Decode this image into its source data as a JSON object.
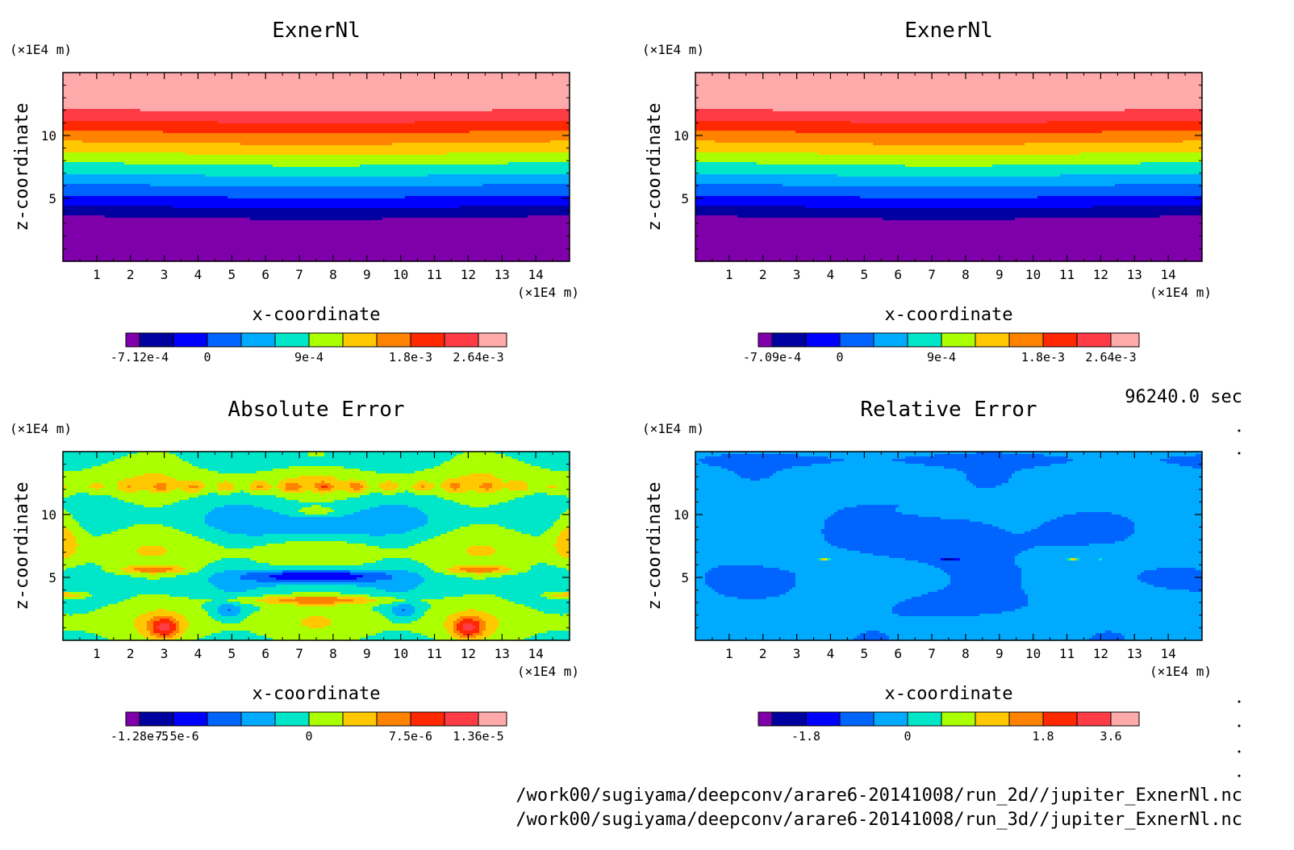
{
  "time_label": "96240.0 sec",
  "files": [
    "/work00/sugiyama/deepconv/arare6-20141008/run_2d//jupiter_ExnerNl.nc",
    "/work00/sugiyama/deepconv/arare6-20141008/run_3d//jupiter_ExnerNl.nc"
  ],
  "chart_data": [
    {
      "type": "heatmap",
      "title": "ExnerNl",
      "xlabel": "x-coordinate",
      "ylabel": "z-coordinate",
      "x_unit": "(×1E4 m)",
      "y_unit": "(×1E4 m)",
      "xlim": [
        0,
        15
      ],
      "ylim": [
        0,
        15
      ],
      "x_ticks": [
        "1",
        "2",
        "3",
        "4",
        "5",
        "6",
        "7",
        "8",
        "9",
        "10",
        "11",
        "12",
        "13",
        "14"
      ],
      "y_ticks": [
        "5",
        "10"
      ],
      "pattern": "horizontal-layers",
      "colorbar_labels": [
        "-7.12e-4",
        "0",
        "9e-4",
        "1.8e-3",
        "2.64e-3"
      ],
      "z_range": [
        -0.000712,
        0.00264
      ]
    },
    {
      "type": "heatmap",
      "title": "ExnerNl",
      "xlabel": "x-coordinate",
      "ylabel": "z-coordinate",
      "x_unit": "(×1E4 m)",
      "y_unit": "(×1E4 m)",
      "xlim": [
        0,
        15
      ],
      "ylim": [
        0,
        15
      ],
      "x_ticks": [
        "1",
        "2",
        "3",
        "4",
        "5",
        "6",
        "7",
        "8",
        "9",
        "10",
        "11",
        "12",
        "13",
        "14"
      ],
      "y_ticks": [
        "5",
        "10"
      ],
      "pattern": "horizontal-layers",
      "colorbar_labels": [
        "-7.09e-4",
        "0",
        "9e-4",
        "1.8e-3",
        "2.64e-3"
      ],
      "z_range": [
        -0.000709,
        0.00264
      ]
    },
    {
      "type": "heatmap",
      "title": "Absolute Error",
      "xlabel": "x-coordinate",
      "ylabel": "z-coordinate",
      "x_unit": "(×1E4 m)",
      "y_unit": "(×1E4 m)",
      "xlim": [
        0,
        15
      ],
      "ylim": [
        0,
        15
      ],
      "x_ticks": [
        "1",
        "2",
        "3",
        "4",
        "5",
        "6",
        "7",
        "8",
        "9",
        "10",
        "11",
        "12",
        "13",
        "14"
      ],
      "y_ticks": [
        "5",
        "10"
      ],
      "pattern": "symmetric-waves",
      "colorbar_labels": [
        "-1.28e-5",
        "-7.5e-6",
        "0",
        "7.5e-6",
        "1.36e-5"
      ],
      "z_range": [
        -1.28e-05,
        1.36e-05
      ]
    },
    {
      "type": "heatmap",
      "title": "Relative Error",
      "xlabel": "x-coordinate",
      "ylabel": "z-coordinate",
      "x_unit": "(×1E4 m)",
      "y_unit": "(×1E4 m)",
      "xlim": [
        0,
        15
      ],
      "ylim": [
        0,
        15
      ],
      "x_ticks": [
        "1",
        "2",
        "3",
        "4",
        "5",
        "6",
        "7",
        "8",
        "9",
        "10",
        "11",
        "12",
        "13",
        "14"
      ],
      "y_ticks": [
        "5",
        "10"
      ],
      "pattern": "mostly-neutral",
      "colorbar_labels": [
        "-1.8",
        "0",
        "1.8",
        "3.6"
      ],
      "z_range": [
        -2.7,
        3.6
      ]
    }
  ],
  "palette": [
    "#7f00aa",
    "#0000a0",
    "#0000ff",
    "#0064ff",
    "#00aaff",
    "#00e6c8",
    "#aaff00",
    "#ffc800",
    "#ff8200",
    "#ff2800",
    "#ff3c46",
    "#ffaaaa"
  ]
}
